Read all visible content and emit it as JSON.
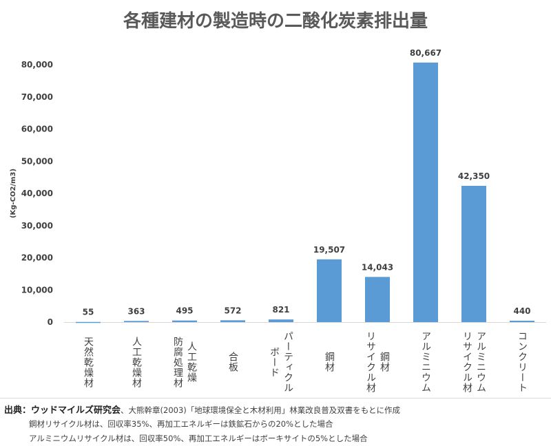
{
  "chart_data": {
    "type": "bar",
    "title": "各種建材の製造時の二酸化炭素排出量",
    "xlabel": "",
    "ylabel": "(Kg-CO2/m3)",
    "ylim": [
      0,
      80000
    ],
    "yticks": [
      0,
      10000,
      20000,
      30000,
      40000,
      50000,
      60000,
      70000,
      80000
    ],
    "ytick_labels": [
      "0",
      "10,000",
      "20,000",
      "30,000",
      "40,000",
      "50,000",
      "60,000",
      "70,000",
      "80,000"
    ],
    "categories": [
      "天然乾燥材",
      "人工乾燥材",
      "人工乾燥\n防腐処理材",
      "合板",
      "パーティクル\nボード",
      "鋼材",
      "鋼材\nリサイクル材",
      "アルミニウム",
      "アルミニウム\nリサイクル材",
      "コンクリート"
    ],
    "values": [
      55,
      363,
      495,
      572,
      821,
      19507,
      14043,
      80667,
      42350,
      440
    ],
    "value_labels": [
      "55",
      "363",
      "495",
      "572",
      "821",
      "19,507",
      "14,043",
      "80,667",
      "42,350",
      "440"
    ],
    "bar_color": "#5b9bd5",
    "grid": false
  },
  "notes": {
    "source_label": "出典：ウッドマイルズ研究会",
    "source_text": "、大熊幹章(2003)「地球環境保全と木材利用」林業改良普及双書をもとに作成",
    "note1": "鋼材リサイクル材は、回収率35%、再加工エネルギーは鉄鉱石からの20%とした場合",
    "note2": "アルミニウムリサイクル材は、回収率50%、再加工エネルギーはボーキサイトの5%とした場合"
  }
}
